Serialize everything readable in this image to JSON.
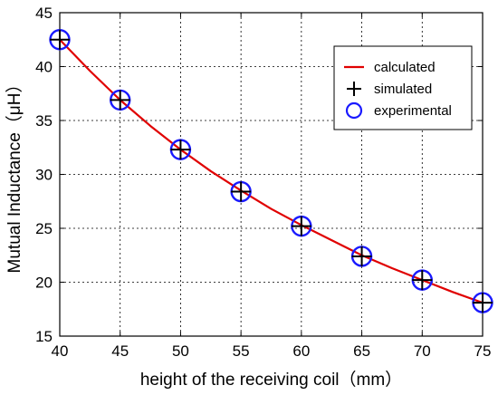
{
  "chart_data": {
    "type": "line",
    "xlabel": "height of the receiving coil（mm）",
    "ylabel": "Mutual Inductance（μH）",
    "xlim": [
      40,
      75
    ],
    "ylim": [
      15,
      45
    ],
    "xticks": [
      40,
      45,
      50,
      55,
      60,
      65,
      70,
      75
    ],
    "yticks": [
      15,
      20,
      25,
      30,
      35,
      40,
      45
    ],
    "grid": true,
    "legend_position": "top-right",
    "series": [
      {
        "name": "calculated",
        "marker": "line",
        "color": "#e00000",
        "x": [
          40,
          42.5,
          45,
          47.5,
          50,
          52.5,
          55,
          57.5,
          60,
          62.5,
          65,
          67.5,
          70,
          72.5,
          75
        ],
        "y": [
          42.5,
          39.6,
          36.9,
          34.5,
          32.3,
          30.3,
          28.5,
          26.8,
          25.3,
          23.9,
          22.5,
          21.3,
          20.2,
          19.1,
          18.1
        ]
      },
      {
        "name": "simulated",
        "marker": "plus",
        "color": "#000000",
        "x": [
          40,
          45,
          50,
          55,
          60,
          65,
          70,
          75
        ],
        "y": [
          42.5,
          36.9,
          32.3,
          28.4,
          25.2,
          22.4,
          20.2,
          18.1
        ]
      },
      {
        "name": "experimental",
        "marker": "circle",
        "color": "#1a1aff",
        "x": [
          40,
          45,
          50,
          55,
          60,
          65,
          70,
          75
        ],
        "y": [
          42.5,
          36.9,
          32.3,
          28.4,
          25.2,
          22.4,
          20.2,
          18.1
        ]
      }
    ]
  }
}
